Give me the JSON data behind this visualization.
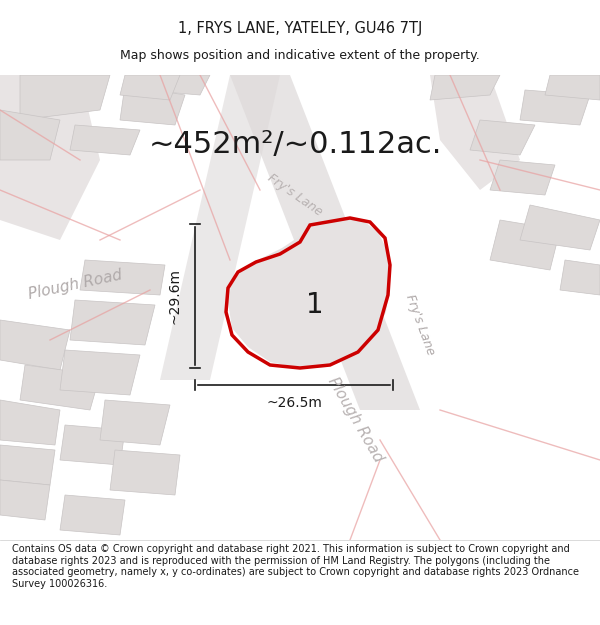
{
  "title_line1": "1, FRYS LANE, YATELEY, GU46 7TJ",
  "title_line2": "Map shows position and indicative extent of the property.",
  "area_text": "~452m²/~0.112ac.",
  "label_1": "1",
  "dim_height": "~29.6m",
  "dim_width": "~26.5m",
  "road_label_1": "Plough Road",
  "road_label_2": "Fry's Lane",
  "road_label_3": "Fry's Lane",
  "footer": "Contains OS data © Crown copyright and database right 2021. This information is subject to Crown copyright and database rights 2023 and is reproduced with the permission of HM Land Registry. The polygons (including the associated geometry, namely x, y co-ordinates) are subject to Crown copyright and database rights 2023 Ordnance Survey 100026316.",
  "bg_color": "#f0eeee",
  "map_bg": "#f7f5f5",
  "plot_color": "#e8e5e5",
  "road_color": "#e0dcdc",
  "red_line_color": "#cc0000",
  "black_color": "#1a1a1a",
  "gray_road_label": "#a0a0a0",
  "title_fontsize": 10.5,
  "subtitle_fontsize": 9,
  "area_fontsize": 22,
  "label_fontsize": 20,
  "dim_fontsize": 10,
  "footer_fontsize": 7
}
